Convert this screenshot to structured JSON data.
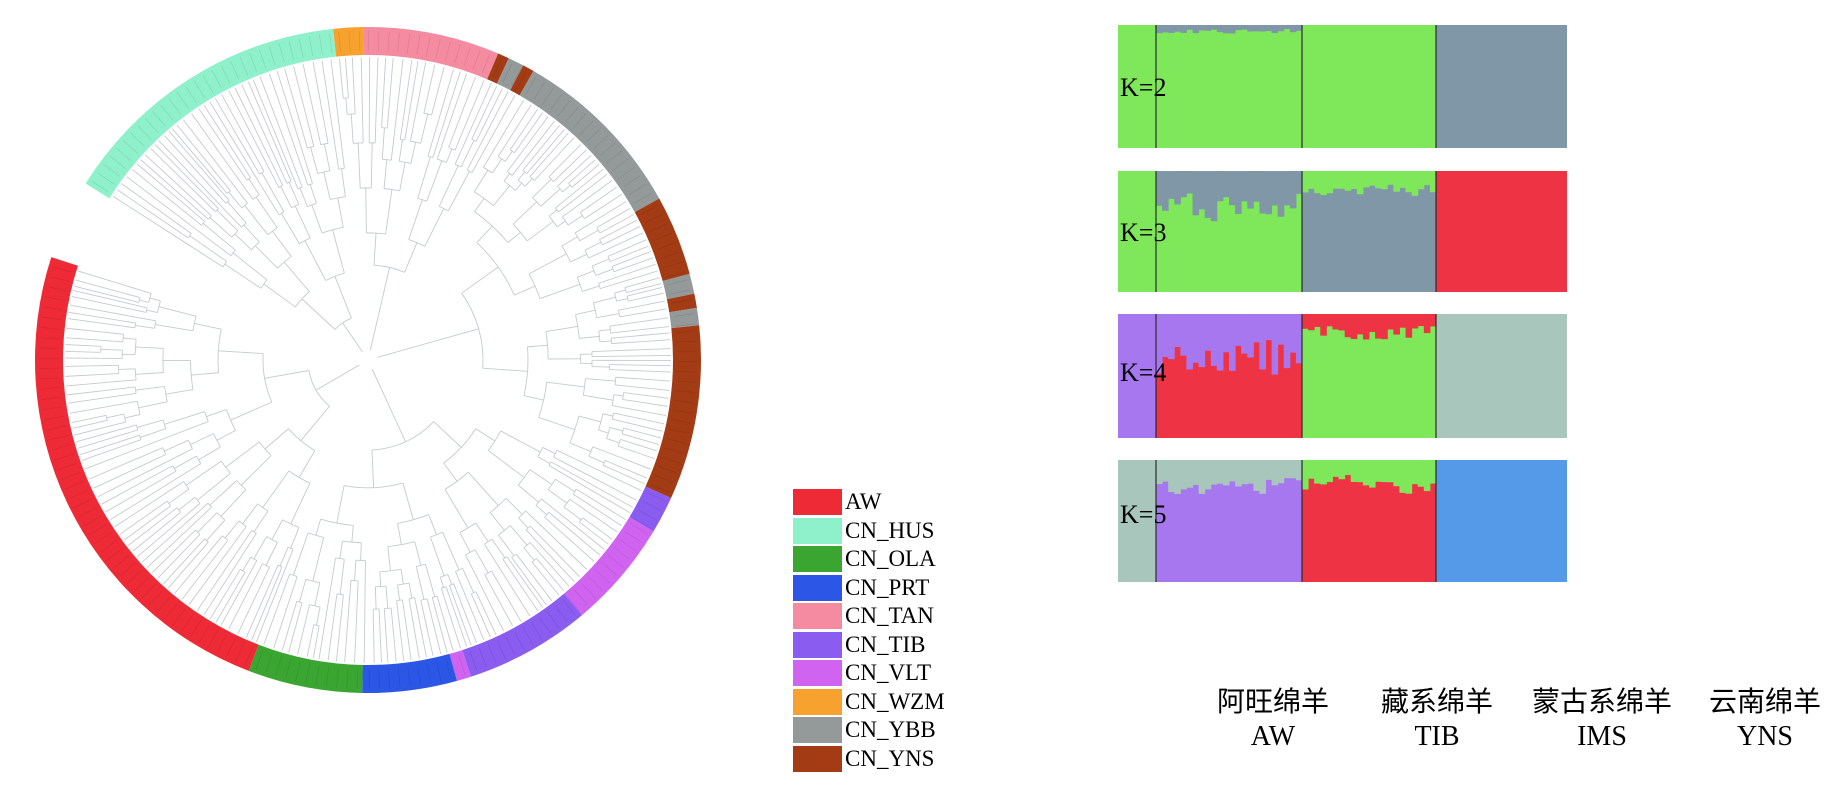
{
  "chart_data": [
    {
      "type": "circular-tree",
      "groups": [
        {
          "name": "AW",
          "color": "#ee2a36"
        },
        {
          "name": "CN_HUS",
          "color": "#8ff0cc"
        },
        {
          "name": "CN_OLA",
          "color": "#3aa531"
        },
        {
          "name": "CN_PRT",
          "color": "#2b56e6"
        },
        {
          "name": "CN_TAN",
          "color": "#f48ba0"
        },
        {
          "name": "CN_TIB",
          "color": "#8a5cf0"
        },
        {
          "name": "CN_VLT",
          "color": "#d064f0"
        },
        {
          "name": "CN_WZM",
          "color": "#f7a12e"
        },
        {
          "name": "CN_YBB",
          "color": "#949a9a"
        },
        {
          "name": "CN_YNS",
          "color": "#a33b15"
        }
      ],
      "ring_segments": [
        {
          "group": "CN_HUS",
          "start_deg": -148,
          "end_deg": -96
        },
        {
          "group": "CN_WZM",
          "start_deg": -96,
          "end_deg": -90.8
        },
        {
          "group": "CN_TAN",
          "start_deg": -90.8,
          "end_deg": -67
        },
        {
          "group": "CN_YNS",
          "start_deg": -67,
          "end_deg": -65
        },
        {
          "group": "CN_YBB",
          "start_deg": -65,
          "end_deg": -62.2
        },
        {
          "group": "CN_YNS",
          "start_deg": -62.2,
          "end_deg": -60.2
        },
        {
          "group": "CN_YBB",
          "start_deg": -60.2,
          "end_deg": -29
        },
        {
          "group": "CN_YNS",
          "start_deg": -29,
          "end_deg": -15
        },
        {
          "group": "CN_YBB",
          "start_deg": -15,
          "end_deg": -11.5
        },
        {
          "group": "CN_YNS",
          "start_deg": -11.5,
          "end_deg": -9
        },
        {
          "group": "CN_YBB",
          "start_deg": -9,
          "end_deg": -6
        },
        {
          "group": "CN_YNS",
          "start_deg": -6,
          "end_deg": 24.5
        },
        {
          "group": "CN_TIB",
          "start_deg": 24.5,
          "end_deg": 31
        },
        {
          "group": "CN_VLT",
          "start_deg": 31,
          "end_deg": 50
        },
        {
          "group": "CN_TIB",
          "start_deg": 50,
          "end_deg": 72
        },
        {
          "group": "CN_VLT",
          "start_deg": 72,
          "end_deg": 74.5
        },
        {
          "group": "CN_PRT",
          "start_deg": 74.5,
          "end_deg": 91
        },
        {
          "group": "CN_OLA",
          "start_deg": 91,
          "end_deg": 111
        },
        {
          "group": "AW",
          "start_deg": 111,
          "end_deg": 198
        }
      ]
    },
    {
      "type": "admixture-bar",
      "k_labels": [
        "K=2",
        "K=3",
        "K=4",
        "K=5"
      ],
      "populations": [
        {
          "cn": "阿旺绵羊",
          "en": "AW"
        },
        {
          "cn": "藏系绵羊",
          "en": "TIB"
        },
        {
          "cn": "蒙古系绵羊",
          "en": "IMS"
        },
        {
          "cn": "云南绵羊",
          "en": "YNS"
        }
      ],
      "colors": {
        "green": "#7fe85a",
        "gray": "#8097a7",
        "red": "#ee3444",
        "purple": "#a677ee",
        "lightgray": "#a9c6bc",
        "blue": "#5599e9"
      },
      "panels": [
        {
          "k": "K=2",
          "blocks": [
            {
              "pop": "AW",
              "color": "green",
              "bottom": 1.0
            },
            {
              "pop": "TIB",
              "color": "green",
              "bottom": 0.95,
              "top_color": "gray",
              "top": 0.05
            },
            {
              "pop": "IMS",
              "color": "green",
              "bottom": 1.0
            },
            {
              "pop": "YNS",
              "color": "gray",
              "bottom": 1.0
            }
          ]
        },
        {
          "k": "K=3",
          "blocks": [
            {
              "pop": "AW",
              "color": "green",
              "bottom": 1.0
            },
            {
              "pop": "TIB",
              "color": "green",
              "bottom": 0.7,
              "top_color": "gray",
              "top": 0.3
            },
            {
              "pop": "IMS",
              "color": "gray",
              "bottom": 0.85,
              "top_color": "green",
              "top": 0.15
            },
            {
              "pop": "YNS",
              "color": "red",
              "bottom": 1.0
            }
          ]
        },
        {
          "k": "K=4",
          "blocks": [
            {
              "pop": "AW",
              "color": "purple",
              "bottom": 1.0
            },
            {
              "pop": "TIB",
              "color": "red",
              "bottom": 0.65,
              "top_color": "purple",
              "top": 0.35
            },
            {
              "pop": "IMS",
              "color": "green",
              "bottom": 0.85,
              "top_color": "red",
              "top": 0.15
            },
            {
              "pop": "YNS",
              "color": "lightgray",
              "bottom": 1.0
            }
          ]
        },
        {
          "k": "K=5",
          "blocks": [
            {
              "pop": "AW",
              "color": "lightgray",
              "bottom": 1.0
            },
            {
              "pop": "TIB",
              "color": "purple",
              "bottom": 0.8,
              "top_color": "lightgray",
              "top": 0.2
            },
            {
              "pop": "IMS",
              "color": "red",
              "bottom": 0.8,
              "top_color": "green",
              "top": 0.2
            },
            {
              "pop": "YNS",
              "color": "blue",
              "bottom": 1.0
            }
          ]
        }
      ]
    }
  ]
}
